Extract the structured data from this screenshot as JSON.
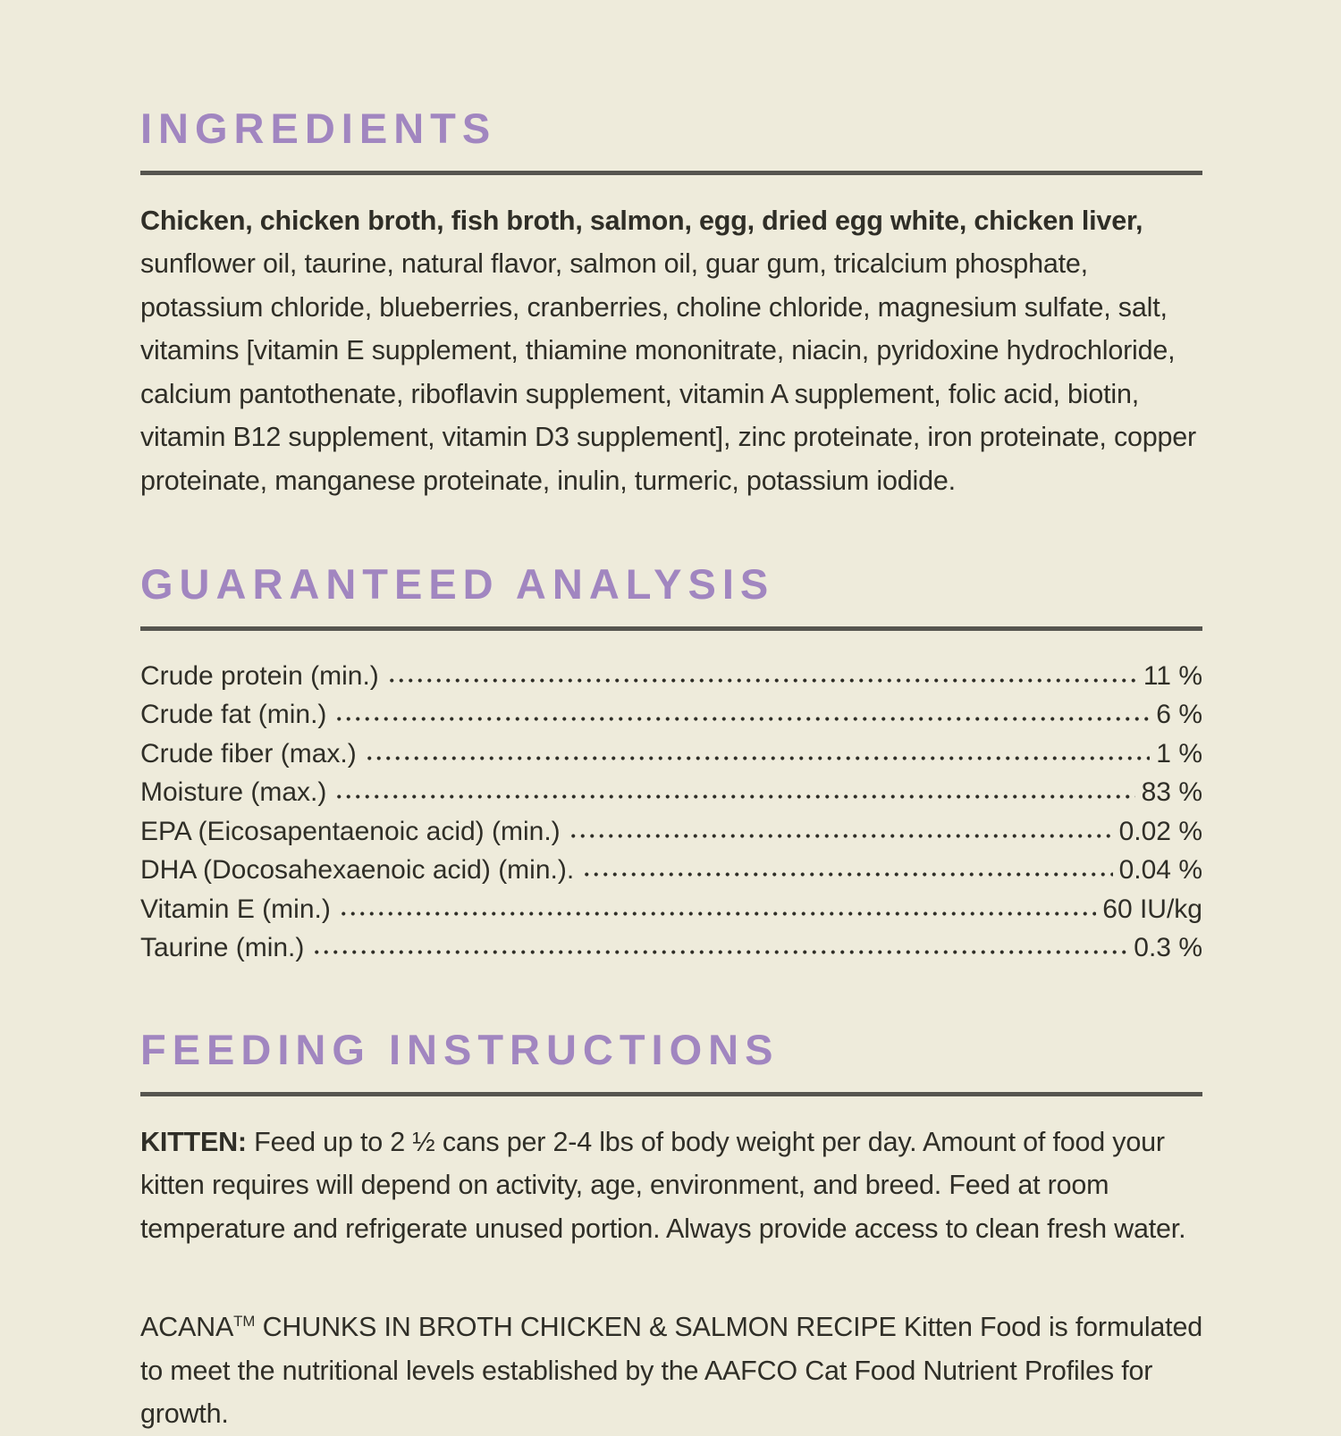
{
  "theme": {
    "background": "#eeebdb",
    "accent": "#a186c0",
    "text": "#2f2e27",
    "rule": "#56554f"
  },
  "ingredients": {
    "heading": "INGREDIENTS",
    "bold_lead": "Chicken, chicken broth, fish broth, salmon, egg, dried egg white, chicken liver,",
    "body": " sunflower oil, taurine, natural flavor, salmon oil, guar gum, tricalcium phosphate, potassium chloride, blueberries, cranberries, choline chloride, magnesium sulfate, salt, vitamins [vitamin E supplement, thiamine mononitrate, niacin, pyridoxine hydrochloride, calcium pantothenate, riboflavin supplement, vitamin A supplement, folic acid, biotin, vitamin B12 supplement, vitamin D3 supplement], zinc proteinate, iron proteinate, copper proteinate, manganese proteinate, inulin, turmeric, potassium iodide."
  },
  "guaranteed_analysis": {
    "heading": "GUARANTEED ANALYSIS",
    "rows": [
      {
        "label": "Crude protein (min.)",
        "value": "11 %"
      },
      {
        "label": "Crude fat (min.)",
        "value": "6 %"
      },
      {
        "label": "Crude fiber (max.)",
        "value": "1 %"
      },
      {
        "label": "Moisture (max.)",
        "value": "83 %"
      },
      {
        "label": "EPA (Eicosapentaenoic acid) (min.)",
        "value": "0.02 %"
      },
      {
        "label": "DHA (Docosahexaenoic acid) (min.).",
        "value": "0.04 %"
      },
      {
        "label": "Vitamin E (min.)",
        "value": "60 IU/kg"
      },
      {
        "label": "Taurine (min.)",
        "value": "0.3 %"
      }
    ]
  },
  "feeding": {
    "heading": "FEEDING INSTRUCTIONS",
    "kitten_label": "KITTEN:",
    "kitten_text": " Feed up to 2 ½ cans per 2-4 lbs of body weight per day. Amount of food your kitten requires will depend on activity, age, environment, and breed. Feed at room temperature and refrigerate unused portion. Always provide access to clean fresh water.",
    "aafco_brand": "ACANA",
    "aafco_tm": "TM",
    "aafco_text": " CHUNKS IN BROTH CHICKEN & SALMON RECIPE Kitten Food is formulated to meet the nutritional levels established by the AAFCO Cat Food Nutrient Profiles for growth."
  }
}
